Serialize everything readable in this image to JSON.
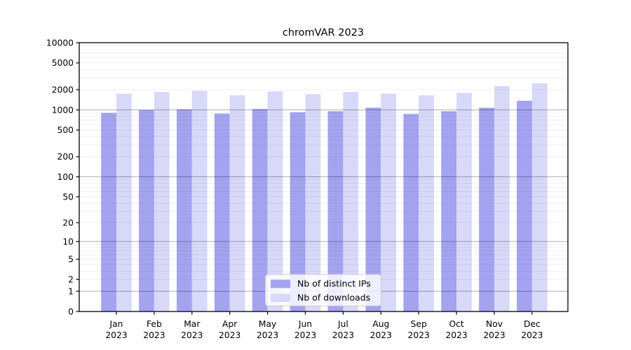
{
  "chart_data": {
    "type": "bar",
    "title": "chromVAR 2023",
    "categories": [
      "Jan 2023",
      "Feb 2023",
      "Mar 2023",
      "Apr 2023",
      "May 2023",
      "Jun 2023",
      "Jul 2023",
      "Aug 2023",
      "Sep 2023",
      "Oct 2023",
      "Nov 2023",
      "Dec 2023"
    ],
    "series": [
      {
        "name": "Nb of distinct IPs",
        "color": "#a3a3f0",
        "values": [
          900,
          1000,
          1020,
          880,
          1030,
          920,
          955,
          1080,
          870,
          955,
          1075,
          1365
        ]
      },
      {
        "name": "Nb of downloads",
        "color": "#d8d8f9",
        "values": [
          1740,
          1855,
          1930,
          1650,
          1890,
          1710,
          1850,
          1745,
          1650,
          1785,
          2260,
          2490
        ]
      }
    ],
    "y_axis": {
      "scale": "log1p",
      "range": [
        0,
        10000
      ],
      "ticks": [
        0,
        1,
        2,
        5,
        10,
        20,
        50,
        100,
        200,
        500,
        1000,
        2000,
        5000,
        10000
      ],
      "major_gridlines": [
        1,
        10,
        100,
        1000,
        10000
      ]
    },
    "x_axis": {
      "label_lines": 2
    },
    "legend": {
      "position": "bottom-center",
      "entries": [
        "Nb of distinct IPs",
        "Nb of downloads"
      ]
    },
    "grid": {
      "horizontal": true,
      "minor": true,
      "drawn_over_bars": true
    },
    "colors": {
      "axis": "#000000",
      "major_grid": "rgba(0,0,0,0.32)",
      "minor_grid": "rgba(0,0,0,0.07)"
    }
  }
}
